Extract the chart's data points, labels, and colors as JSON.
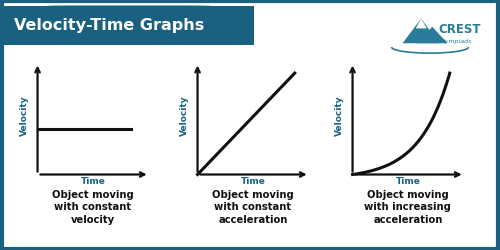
{
  "title": "Velocity-Time Graphs",
  "title_bg_color": "#1a6080",
  "title_text_color": "#ffffff",
  "border_color": "#1a6080",
  "background_color": "#ffffff",
  "axis_color": "#111111",
  "line_color": "#111111",
  "label_color": "#1a6080",
  "caption_color": "#111111",
  "crest_color": "#2a7a9a",
  "graphs": [
    {
      "caption": "Object moving\nwith constant\nvelocity",
      "type": "constant"
    },
    {
      "caption": "Object moving\nwith constant\nacceleration",
      "type": "linear"
    },
    {
      "caption": "Object moving\nwith increasing\nacceleration",
      "type": "exponential"
    }
  ],
  "title_fontsize": 11.5,
  "caption_fontsize": 7.2,
  "axis_label_fontsize": 6.5,
  "fig_width": 5.0,
  "fig_height": 2.5,
  "dpi": 100
}
